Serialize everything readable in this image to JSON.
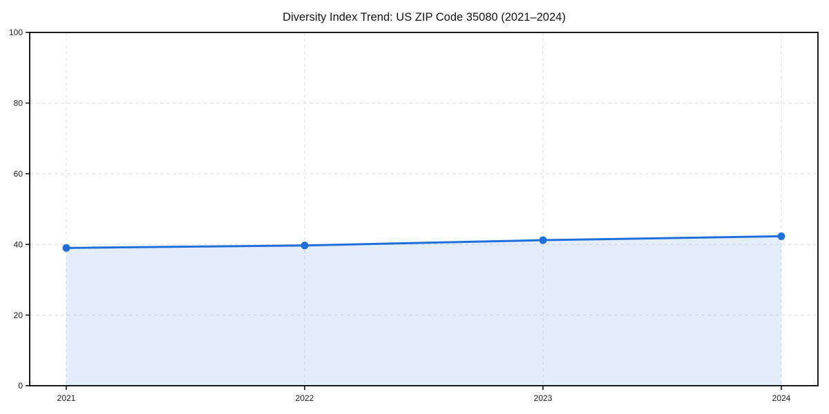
{
  "chart_data": {
    "type": "line",
    "title": "Diversity Index Trend: US ZIP Code 35080 (2021–2024)",
    "categories": [
      "2021",
      "2022",
      "2023",
      "2024"
    ],
    "series": [
      {
        "name": "Diversity Index",
        "values": [
          39.0,
          39.7,
          41.2,
          42.3
        ]
      }
    ],
    "xlabel": "",
    "ylabel": "",
    "ylim": [
      0,
      100
    ],
    "yticks": [
      0,
      20,
      40,
      60,
      80,
      100
    ],
    "grid": "dashed-both",
    "legend": "none",
    "area_fill": true,
    "marker": "circle",
    "colors": {
      "line": "#1f6fdb",
      "marker": "#1f6fdb",
      "area_fill": "rgba(31,111,219,0.12)",
      "grid": "#dcdcdc",
      "axis": "#000000",
      "text": "#1a1a1a",
      "background": "#ffffff"
    }
  }
}
